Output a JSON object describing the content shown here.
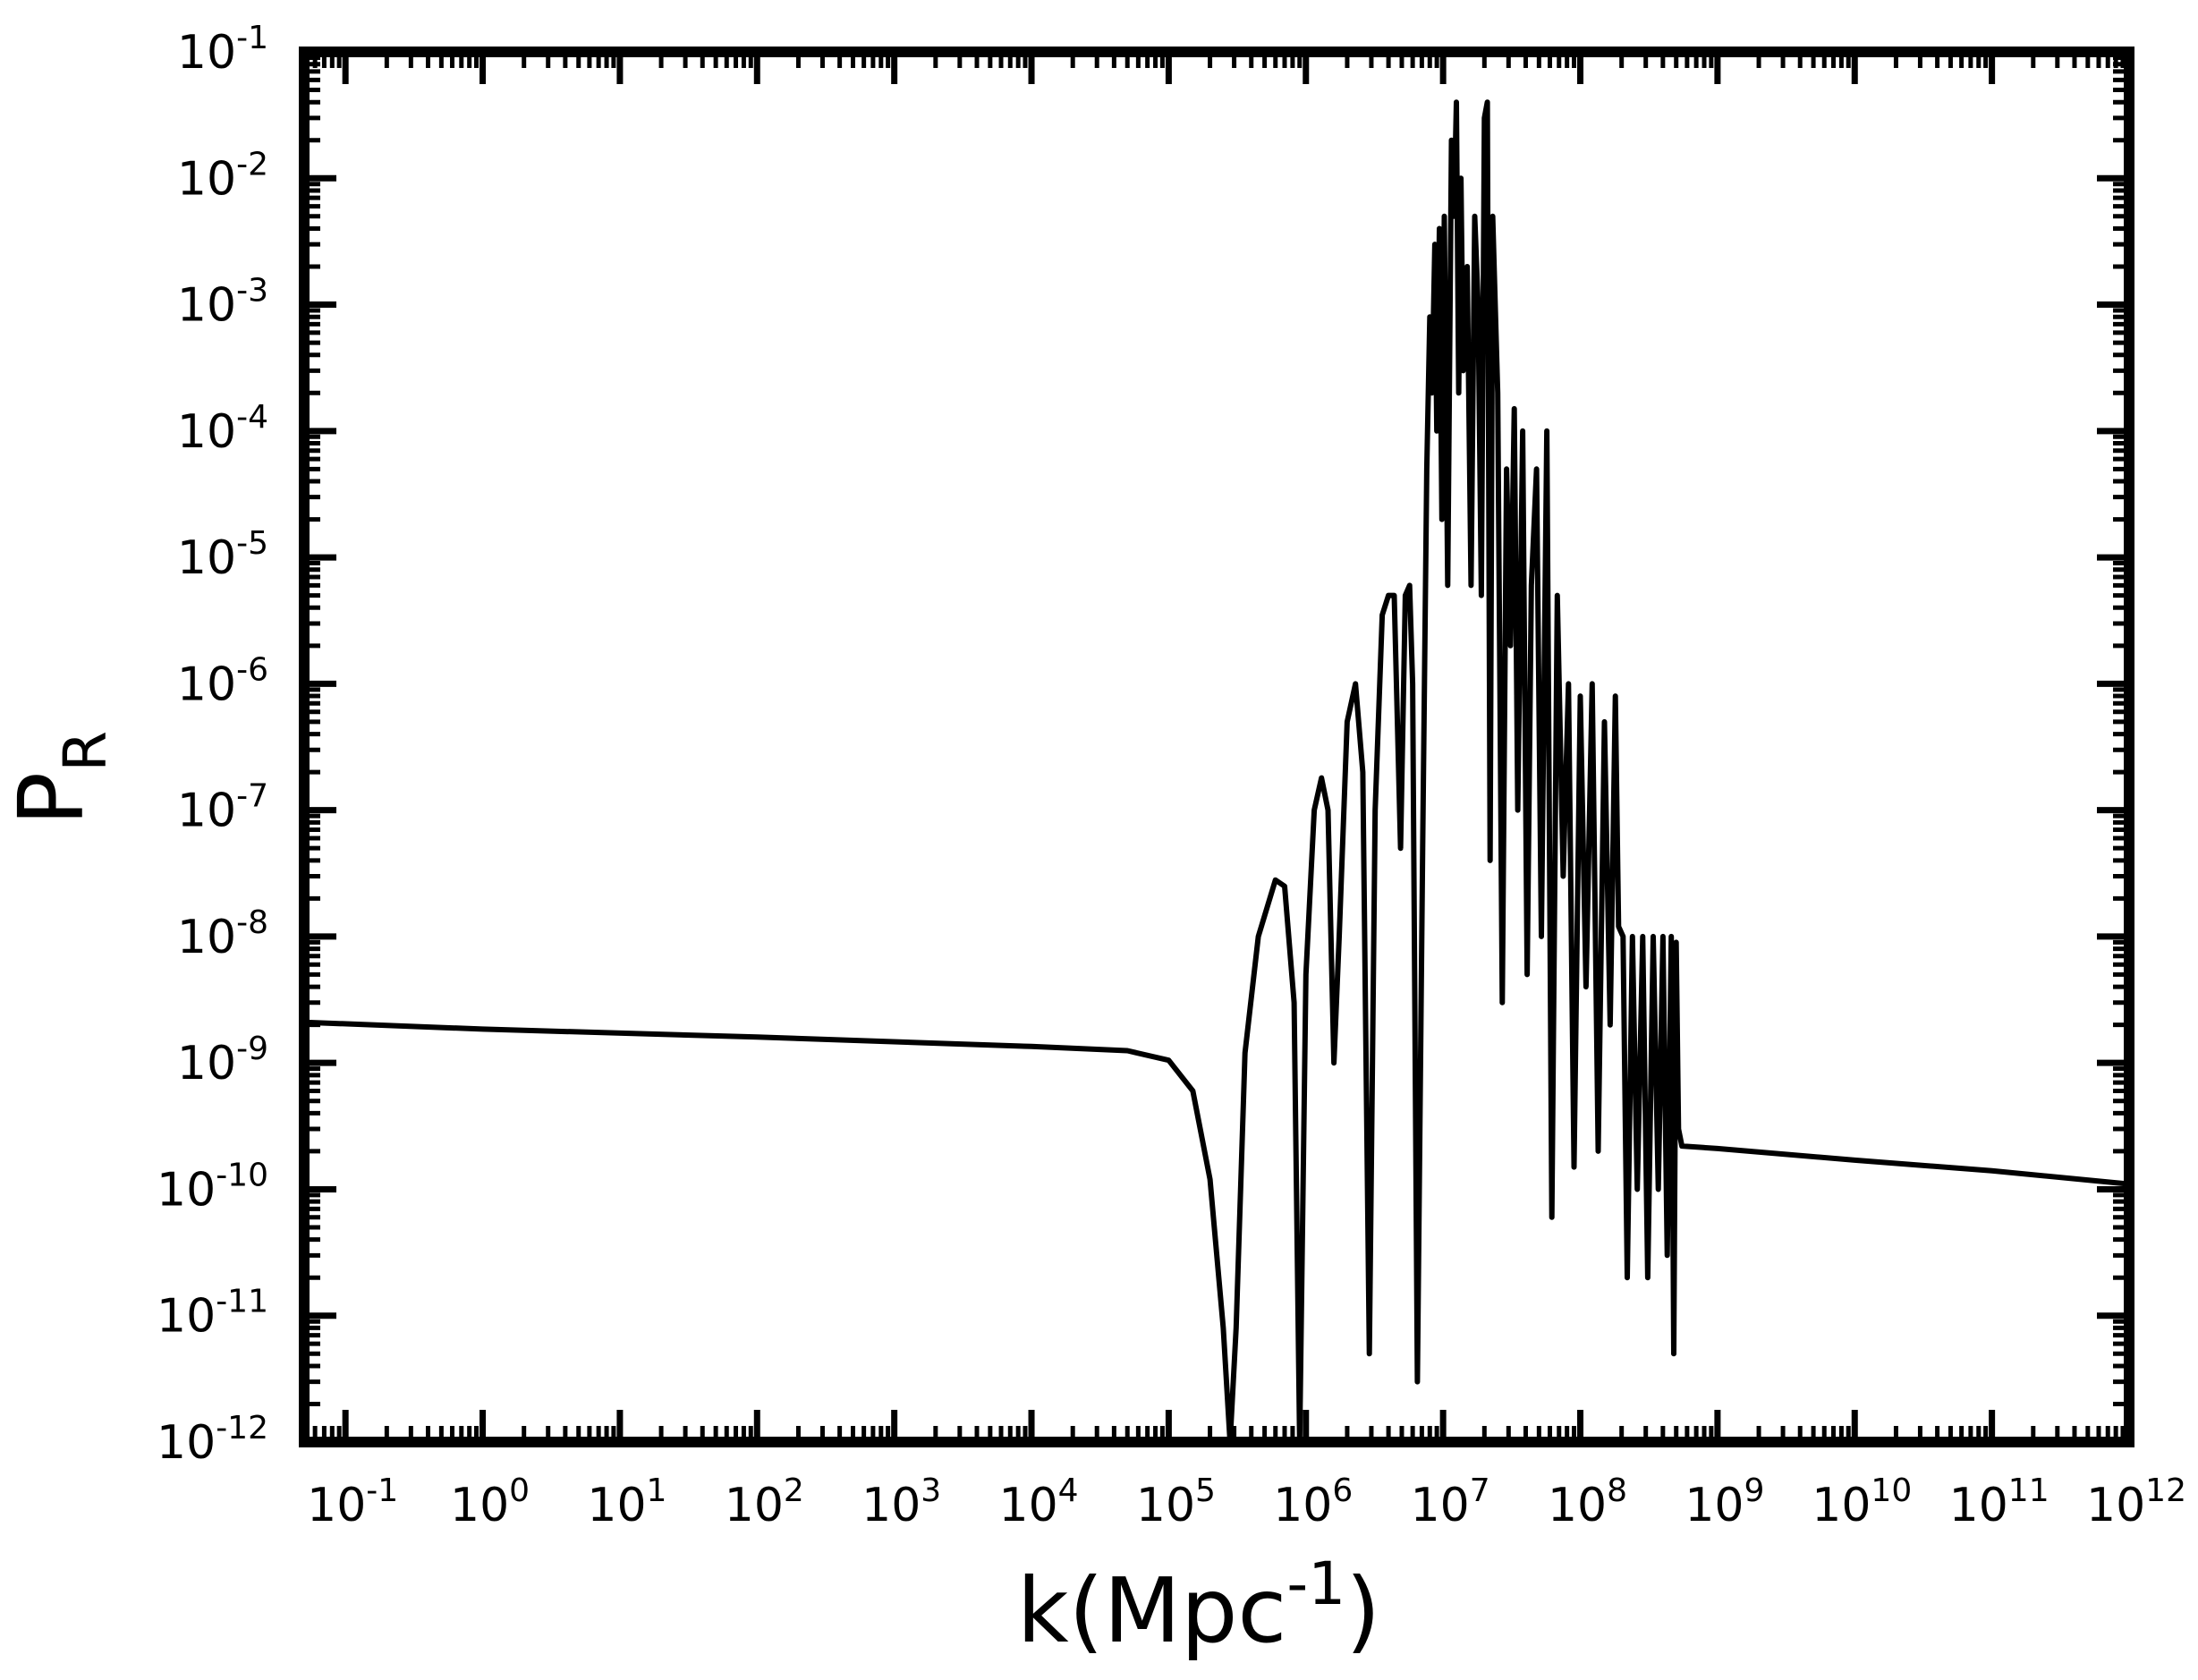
{
  "chart_data": {
    "type": "line",
    "title": "",
    "xlabel": {
      "base": "k(Mpc",
      "exponent": "-1",
      "close": ")"
    },
    "ylabel": {
      "base": "P",
      "subscript": "R"
    },
    "x_scale": "log",
    "y_scale": "log",
    "xlim": [
      0.05,
      1000000000000.0
    ],
    "ylim": [
      1e-12,
      0.1
    ],
    "grid": false,
    "legend": "none",
    "colors": {
      "line": "#000000",
      "frame": "#000000",
      "background": "#ffffff"
    },
    "x_ticks": [
      {
        "value": 0.1,
        "base": "10",
        "exp": "-1"
      },
      {
        "value": 1,
        "base": "10",
        "exp": "0"
      },
      {
        "value": 10,
        "base": "10",
        "exp": "1"
      },
      {
        "value": 100,
        "base": "10",
        "exp": "2"
      },
      {
        "value": 1000,
        "base": "10",
        "exp": "3"
      },
      {
        "value": 10000,
        "base": "10",
        "exp": "4"
      },
      {
        "value": 100000,
        "base": "10",
        "exp": "5"
      },
      {
        "value": 1000000,
        "base": "10",
        "exp": "6"
      },
      {
        "value": 10000000,
        "base": "10",
        "exp": "7"
      },
      {
        "value": 100000000,
        "base": "10",
        "exp": "8"
      },
      {
        "value": 1000000000,
        "base": "10",
        "exp": "9"
      },
      {
        "value": 10000000000,
        "base": "10",
        "exp": "10"
      },
      {
        "value": 100000000000,
        "base": "10",
        "exp": "11"
      },
      {
        "value": 1000000000000,
        "base": "10",
        "exp": "12"
      }
    ],
    "y_ticks": [
      {
        "value": 0.1,
        "base": "10",
        "exp": "-1"
      },
      {
        "value": 0.01,
        "base": "10",
        "exp": "-2"
      },
      {
        "value": 0.001,
        "base": "10",
        "exp": "-3"
      },
      {
        "value": 0.0001,
        "base": "10",
        "exp": "-4"
      },
      {
        "value": 1e-05,
        "base": "10",
        "exp": "-5"
      },
      {
        "value": 1e-06,
        "base": "10",
        "exp": "-6"
      },
      {
        "value": 1e-07,
        "base": "10",
        "exp": "-7"
      },
      {
        "value": 1e-08,
        "base": "10",
        "exp": "-8"
      },
      {
        "value": 1e-09,
        "base": "10",
        "exp": "-9"
      },
      {
        "value": 1e-10,
        "base": "10",
        "exp": "-10"
      },
      {
        "value": 1e-11,
        "base": "10",
        "exp": "-11"
      },
      {
        "value": 1e-12,
        "base": "10",
        "exp": "-12"
      }
    ],
    "series": [
      {
        "points": [
          [
            0.05,
            2.1e-09
          ],
          [
            1,
            1.85e-09
          ],
          [
            100,
            1.6e-09
          ],
          [
            10000,
            1.35e-09
          ],
          [
            50000,
            1.25e-09
          ],
          [
            100000,
            1.05e-09
          ],
          [
            150000,
            6e-10
          ],
          [
            200000,
            1.2e-10
          ],
          [
            250000,
            8e-12
          ],
          [
            280000,
            1e-12
          ],
          [
            310000,
            8e-12
          ],
          [
            360000,
            1.2e-09
          ],
          [
            450000,
            1e-08
          ],
          [
            600000,
            2.8e-08
          ],
          [
            700000,
            2.5e-08
          ],
          [
            820000,
            3e-09
          ],
          [
            900000,
            1e-12
          ],
          [
            1000000,
            5e-09
          ],
          [
            1150000,
            1e-07
          ],
          [
            1300000,
            1.8e-07
          ],
          [
            1450000,
            1e-07
          ],
          [
            1600000,
            1e-09
          ],
          [
            1750000,
            1e-08
          ],
          [
            2000000,
            5e-07
          ],
          [
            2300000,
            1e-06
          ],
          [
            2600000,
            2e-07
          ],
          [
            2900000,
            5e-12
          ],
          [
            3200000,
            1e-07
          ],
          [
            3600000,
            3.5e-06
          ],
          [
            4000000,
            5e-06
          ],
          [
            4400000,
            5e-06
          ],
          [
            4900000,
            5e-08
          ],
          [
            5300000,
            5e-06
          ],
          [
            5700000,
            6e-06
          ],
          [
            6000000,
            1e-06
          ],
          [
            6500000,
            3e-12
          ],
          [
            7100000,
            5e-08
          ],
          [
            7600000,
            5e-05
          ],
          [
            8000000,
            0.0008
          ],
          [
            8300000,
            0.0002
          ],
          [
            8700000,
            0.003
          ],
          [
            9000000,
            0.0001
          ],
          [
            9400000,
            0.004
          ],
          [
            9800000,
            2e-05
          ],
          [
            10200000,
            0.005
          ],
          [
            10800000,
            6e-06
          ],
          [
            11500000,
            0.02
          ],
          [
            12000000,
            0.005
          ],
          [
            12500000,
            0.04
          ],
          [
            13000000,
            0.0002
          ],
          [
            13500000,
            0.01
          ],
          [
            14000000,
            0.0003
          ],
          [
            15000000,
            0.002
          ],
          [
            16000000,
            6e-06
          ],
          [
            17000000,
            0.005
          ],
          [
            18000000,
            0.001
          ],
          [
            19000000,
            5e-06
          ],
          [
            20000000,
            0.03
          ],
          [
            21000000,
            0.04
          ],
          [
            22000000,
            4e-08
          ],
          [
            23000000,
            0.005
          ],
          [
            25000000,
            0.0002
          ],
          [
            27000000,
            3e-09
          ],
          [
            29000000,
            5e-05
          ],
          [
            31000000,
            2e-06
          ],
          [
            33000000,
            0.00015
          ],
          [
            35000000,
            1e-07
          ],
          [
            38000000,
            0.0001
          ],
          [
            41000000,
            5e-09
          ],
          [
            44000000,
            6e-06
          ],
          [
            48000000,
            5e-05
          ],
          [
            52000000,
            1e-08
          ],
          [
            57000000,
            0.0001
          ],
          [
            62000000,
            6e-11
          ],
          [
            68000000,
            5e-06
          ],
          [
            75000000,
            3e-08
          ],
          [
            82000000,
            1e-06
          ],
          [
            90000000,
            1.5e-10
          ],
          [
            100000000,
            8e-07
          ],
          [
            110000000,
            4e-09
          ],
          [
            122000000,
            1e-06
          ],
          [
            135000000,
            2e-10
          ],
          [
            150000000,
            5e-07
          ],
          [
            165000000,
            2e-09
          ],
          [
            180000000,
            8e-07
          ],
          [
            190000000,
            1.2e-08
          ],
          [
            205000000,
            1e-08
          ],
          [
            220000000,
            2e-11
          ],
          [
            240000000,
            1e-08
          ],
          [
            260000000,
            1e-10
          ],
          [
            285000000,
            1e-08
          ],
          [
            310000000,
            2e-11
          ],
          [
            340000000,
            1e-08
          ],
          [
            370000000,
            1e-10
          ],
          [
            400000000,
            1e-08
          ],
          [
            430000000,
            3e-11
          ],
          [
            460000000,
            1e-08
          ],
          [
            480000000,
            5e-12
          ],
          [
            500000000,
            9e-09
          ],
          [
            520000000,
            3e-10
          ],
          [
            550000000,
            2.2e-10
          ],
          [
            1000000000.0,
            2.1e-10
          ],
          [
            10000000000.0,
            1.7e-10
          ],
          [
            100000000000.0,
            1.4e-10
          ],
          [
            1000000000000.0,
            1.1e-10
          ]
        ]
      }
    ]
  }
}
